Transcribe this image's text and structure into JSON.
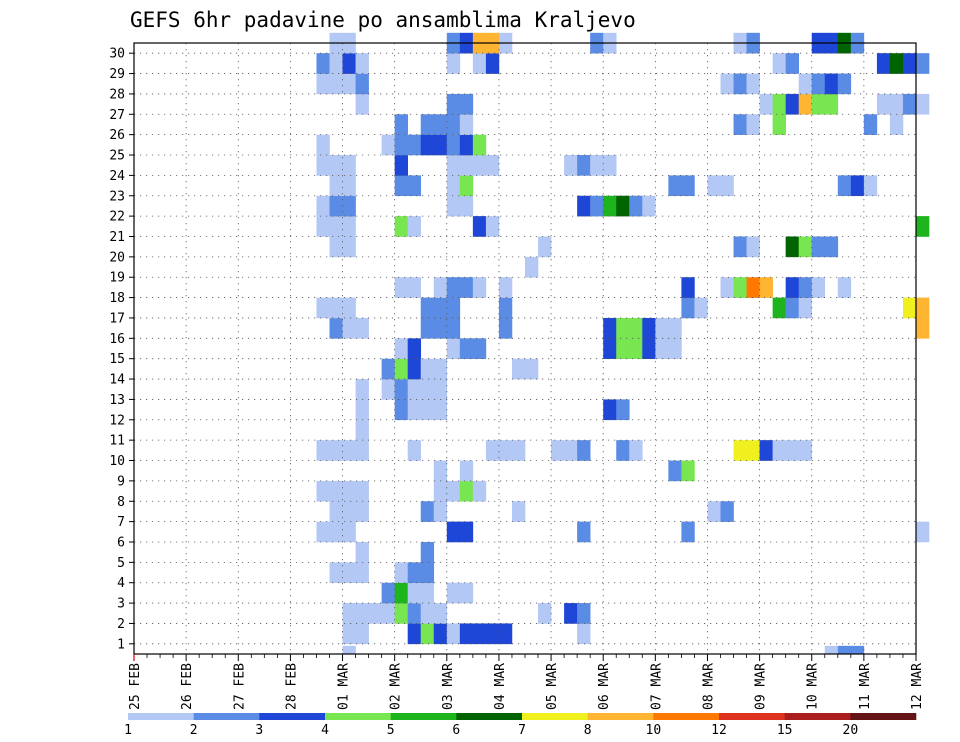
{
  "chart_data": {
    "type": "heatmap",
    "title": "GEFS 6hr padavine po ansamblima Kraljevo",
    "xlabel": "",
    "ylabel": "",
    "grid": true,
    "x_ticks": [
      "25 FEB",
      "26 FEB",
      "27 FEB",
      "28 FEB",
      "01 MAR",
      "02 MAR",
      "03 MAR",
      "04 MAR",
      "05 MAR",
      "06 MAR",
      "07 MAR",
      "08 MAR",
      "09 MAR",
      "10 MAR",
      "11 MAR",
      "12 MAR"
    ],
    "y_ticks": [
      1,
      2,
      3,
      4,
      5,
      6,
      7,
      8,
      9,
      10,
      11,
      12,
      13,
      14,
      15,
      16,
      17,
      18,
      19,
      20,
      21,
      22,
      23,
      24,
      25,
      26,
      27,
      28,
      29,
      30
    ],
    "x_range": [
      "25 FEB 00Z",
      "12 MAR 00Z"
    ],
    "y_range": [
      0,
      30
    ],
    "steps_per_day": 4,
    "levels": [
      1,
      2,
      3,
      4,
      5,
      6,
      7,
      8,
      10,
      12,
      15,
      20
    ],
    "colors": [
      "#b4c8f5",
      "#5a8ce6",
      "#1e46d7",
      "#78e650",
      "#1eb41e",
      "#006400",
      "#f0f01e",
      "#ffb432",
      "#ff7800",
      "#dc321e",
      "#aa1e1e",
      "#641414"
    ],
    "cells": [
      [
        16,
        1,
        1
      ],
      [
        16,
        2,
        1
      ],
      [
        17,
        1,
        1
      ],
      [
        21,
        1,
        3
      ],
      [
        22,
        1,
        4
      ],
      [
        23,
        1,
        3
      ],
      [
        24,
        1,
        1
      ],
      [
        25,
        1,
        3
      ],
      [
        26,
        1,
        3
      ],
      [
        27,
        1,
        3
      ],
      [
        28,
        1,
        3
      ],
      [
        34,
        1,
        1
      ],
      [
        16,
        2,
        1
      ],
      [
        17,
        2,
        1
      ],
      [
        18,
        2,
        1
      ],
      [
        19,
        2,
        1
      ],
      [
        20,
        2,
        4
      ],
      [
        21,
        2,
        2
      ],
      [
        22,
        2,
        1
      ],
      [
        23,
        2,
        1
      ],
      [
        31,
        2,
        1
      ],
      [
        33,
        2,
        3
      ],
      [
        34,
        2,
        2
      ],
      [
        19,
        3,
        2
      ],
      [
        20,
        3,
        5
      ],
      [
        21,
        3,
        1
      ],
      [
        22,
        3,
        1
      ],
      [
        24,
        3,
        1
      ],
      [
        25,
        3,
        1
      ],
      [
        15,
        4,
        1
      ],
      [
        16,
        4,
        1
      ],
      [
        17,
        4,
        1
      ],
      [
        20,
        4,
        1
      ],
      [
        21,
        4,
        2
      ],
      [
        22,
        4,
        2
      ],
      [
        17,
        5,
        1
      ],
      [
        22,
        5,
        2
      ],
      [
        14,
        6,
        1
      ],
      [
        15,
        6,
        1
      ],
      [
        16,
        6,
        1
      ],
      [
        24,
        6,
        3
      ],
      [
        25,
        6,
        3
      ],
      [
        34,
        6,
        2
      ],
      [
        42,
        6,
        2
      ],
      [
        60,
        6,
        1
      ],
      [
        15,
        7,
        1
      ],
      [
        16,
        7,
        1
      ],
      [
        17,
        7,
        1
      ],
      [
        22,
        7,
        2
      ],
      [
        23,
        7,
        1
      ],
      [
        29,
        7,
        1
      ],
      [
        44,
        7,
        1
      ],
      [
        45,
        7,
        2
      ],
      [
        14,
        8,
        1
      ],
      [
        15,
        8,
        1
      ],
      [
        16,
        8,
        1
      ],
      [
        17,
        8,
        1
      ],
      [
        23,
        8,
        1
      ],
      [
        24,
        8,
        1
      ],
      [
        25,
        8,
        4
      ],
      [
        26,
        8,
        1
      ],
      [
        23,
        9,
        1
      ],
      [
        25,
        9,
        1
      ],
      [
        41,
        9,
        2
      ],
      [
        42,
        9,
        4
      ],
      [
        14,
        10,
        1
      ],
      [
        15,
        10,
        1
      ],
      [
        16,
        10,
        1
      ],
      [
        17,
        10,
        1
      ],
      [
        21,
        10,
        1
      ],
      [
        27,
        10,
        1
      ],
      [
        28,
        10,
        1
      ],
      [
        29,
        10,
        1
      ],
      [
        32,
        10,
        1
      ],
      [
        33,
        10,
        1
      ],
      [
        34,
        10,
        2
      ],
      [
        37,
        10,
        2
      ],
      [
        38,
        10,
        1
      ],
      [
        46,
        10,
        7
      ],
      [
        47,
        10,
        7
      ],
      [
        48,
        10,
        3
      ],
      [
        49,
        10,
        1
      ],
      [
        50,
        10,
        1
      ],
      [
        51,
        10,
        1
      ],
      [
        17,
        11,
        1
      ],
      [
        17,
        12,
        1
      ],
      [
        20,
        12,
        2
      ],
      [
        21,
        12,
        1
      ],
      [
        22,
        12,
        1
      ],
      [
        23,
        12,
        1
      ],
      [
        36,
        12,
        3
      ],
      [
        37,
        12,
        2
      ],
      [
        17,
        13,
        1
      ],
      [
        19,
        13,
        1
      ],
      [
        20,
        13,
        2
      ],
      [
        21,
        13,
        1
      ],
      [
        22,
        13,
        1
      ],
      [
        23,
        13,
        1
      ],
      [
        19,
        14,
        2
      ],
      [
        20,
        14,
        4
      ],
      [
        21,
        14,
        3
      ],
      [
        22,
        14,
        1
      ],
      [
        23,
        14,
        1
      ],
      [
        29,
        14,
        1
      ],
      [
        30,
        14,
        1
      ],
      [
        20,
        15,
        1
      ],
      [
        21,
        15,
        3
      ],
      [
        24,
        15,
        1
      ],
      [
        25,
        15,
        2
      ],
      [
        26,
        15,
        2
      ],
      [
        36,
        15,
        3
      ],
      [
        37,
        15,
        4
      ],
      [
        38,
        15,
        4
      ],
      [
        39,
        15,
        3
      ],
      [
        40,
        15,
        1
      ],
      [
        41,
        15,
        1
      ],
      [
        15,
        16,
        2
      ],
      [
        16,
        16,
        1
      ],
      [
        17,
        16,
        1
      ],
      [
        22,
        16,
        2
      ],
      [
        23,
        16,
        2
      ],
      [
        24,
        16,
        2
      ],
      [
        28,
        16,
        2
      ],
      [
        36,
        16,
        3
      ],
      [
        37,
        16,
        4
      ],
      [
        38,
        16,
        4
      ],
      [
        39,
        16,
        3
      ],
      [
        40,
        16,
        1
      ],
      [
        41,
        16,
        1
      ],
      [
        60,
        16,
        8
      ],
      [
        14,
        17,
        1
      ],
      [
        15,
        17,
        1
      ],
      [
        16,
        17,
        1
      ],
      [
        22,
        17,
        2
      ],
      [
        23,
        17,
        2
      ],
      [
        24,
        17,
        2
      ],
      [
        28,
        17,
        2
      ],
      [
        42,
        17,
        2
      ],
      [
        43,
        17,
        1
      ],
      [
        49,
        17,
        5
      ],
      [
        50,
        17,
        2
      ],
      [
        51,
        17,
        1
      ],
      [
        59,
        17,
        7
      ],
      [
        60,
        17,
        8
      ],
      [
        20,
        18,
        1
      ],
      [
        21,
        18,
        1
      ],
      [
        23,
        18,
        1
      ],
      [
        24,
        18,
        2
      ],
      [
        25,
        18,
        2
      ],
      [
        26,
        18,
        1
      ],
      [
        28,
        18,
        1
      ],
      [
        42,
        18,
        3
      ],
      [
        45,
        18,
        1
      ],
      [
        46,
        18,
        4
      ],
      [
        47,
        18,
        9
      ],
      [
        48,
        18,
        8
      ],
      [
        50,
        18,
        3
      ],
      [
        51,
        18,
        2
      ],
      [
        52,
        18,
        1
      ],
      [
        54,
        18,
        1
      ],
      [
        30,
        19,
        1
      ],
      [
        15,
        20,
        1
      ],
      [
        16,
        20,
        1
      ],
      [
        31,
        20,
        1
      ],
      [
        46,
        20,
        2
      ],
      [
        47,
        20,
        1
      ],
      [
        50,
        20,
        6
      ],
      [
        51,
        20,
        4
      ],
      [
        52,
        20,
        2
      ],
      [
        53,
        20,
        2
      ],
      [
        14,
        21,
        1
      ],
      [
        15,
        21,
        1
      ],
      [
        16,
        21,
        1
      ],
      [
        20,
        21,
        4
      ],
      [
        21,
        21,
        1
      ],
      [
        26,
        21,
        3
      ],
      [
        27,
        21,
        1
      ],
      [
        60,
        21,
        5
      ],
      [
        14,
        22,
        1
      ],
      [
        15,
        22,
        2
      ],
      [
        16,
        22,
        2
      ],
      [
        24,
        22,
        1
      ],
      [
        25,
        22,
        1
      ],
      [
        34,
        22,
        3
      ],
      [
        35,
        22,
        2
      ],
      [
        36,
        22,
        5
      ],
      [
        37,
        22,
        6
      ],
      [
        38,
        22,
        2
      ],
      [
        39,
        22,
        1
      ],
      [
        15,
        23,
        1
      ],
      [
        16,
        23,
        1
      ],
      [
        20,
        23,
        2
      ],
      [
        21,
        23,
        2
      ],
      [
        24,
        23,
        1
      ],
      [
        25,
        23,
        4
      ],
      [
        41,
        23,
        2
      ],
      [
        42,
        23,
        2
      ],
      [
        44,
        23,
        1
      ],
      [
        45,
        23,
        1
      ],
      [
        54,
        23,
        2
      ],
      [
        55,
        23,
        3
      ],
      [
        56,
        23,
        1
      ],
      [
        14,
        24,
        1
      ],
      [
        15,
        24,
        1
      ],
      [
        16,
        24,
        1
      ],
      [
        20,
        24,
        3
      ],
      [
        24,
        24,
        1
      ],
      [
        25,
        24,
        1
      ],
      [
        26,
        24,
        1
      ],
      [
        27,
        24,
        1
      ],
      [
        33,
        24,
        1
      ],
      [
        34,
        24,
        2
      ],
      [
        35,
        24,
        1
      ],
      [
        36,
        24,
        1
      ],
      [
        14,
        25,
        1
      ],
      [
        19,
        25,
        1
      ],
      [
        20,
        25,
        2
      ],
      [
        21,
        25,
        2
      ],
      [
        22,
        25,
        3
      ],
      [
        23,
        25,
        3
      ],
      [
        24,
        25,
        2
      ],
      [
        25,
        25,
        3
      ],
      [
        26,
        25,
        4
      ],
      [
        20,
        26,
        2
      ],
      [
        22,
        26,
        2
      ],
      [
        23,
        26,
        2
      ],
      [
        24,
        26,
        2
      ],
      [
        25,
        26,
        1
      ],
      [
        46,
        26,
        2
      ],
      [
        47,
        26,
        1
      ],
      [
        49,
        26,
        4
      ],
      [
        56,
        26,
        2
      ],
      [
        58,
        26,
        1
      ],
      [
        17,
        27,
        1
      ],
      [
        24,
        27,
        2
      ],
      [
        25,
        27,
        2
      ],
      [
        48,
        27,
        1
      ],
      [
        49,
        27,
        4
      ],
      [
        50,
        27,
        3
      ],
      [
        51,
        27,
        8
      ],
      [
        52,
        27,
        4
      ],
      [
        53,
        27,
        4
      ],
      [
        57,
        27,
        1
      ],
      [
        58,
        27,
        1
      ],
      [
        59,
        27,
        2
      ],
      [
        60,
        27,
        1
      ],
      [
        14,
        28,
        1
      ],
      [
        15,
        28,
        1
      ],
      [
        16,
        28,
        1
      ],
      [
        17,
        28,
        2
      ],
      [
        45,
        28,
        1
      ],
      [
        46,
        28,
        2
      ],
      [
        47,
        28,
        1
      ],
      [
        51,
        28,
        1
      ],
      [
        52,
        28,
        2
      ],
      [
        53,
        28,
        3
      ],
      [
        54,
        28,
        2
      ],
      [
        14,
        29,
        2
      ],
      [
        15,
        29,
        1
      ],
      [
        16,
        29,
        3
      ],
      [
        17,
        29,
        1
      ],
      [
        24,
        29,
        1
      ],
      [
        26,
        29,
        1
      ],
      [
        27,
        29,
        3
      ],
      [
        49,
        29,
        1
      ],
      [
        50,
        29,
        2
      ],
      [
        57,
        29,
        3
      ],
      [
        58,
        29,
        6
      ],
      [
        59,
        29,
        3
      ],
      [
        60,
        29,
        2
      ],
      [
        15,
        30,
        1
      ],
      [
        16,
        30,
        1
      ],
      [
        24,
        30,
        2
      ],
      [
        25,
        30,
        3
      ],
      [
        26,
        30,
        8
      ],
      [
        27,
        30,
        8
      ],
      [
        28,
        30,
        1
      ],
      [
        35,
        30,
        2
      ],
      [
        36,
        30,
        1
      ],
      [
        46,
        30,
        1
      ],
      [
        47,
        30,
        2
      ],
      [
        52,
        30,
        3
      ],
      [
        53,
        30,
        3
      ],
      [
        54,
        30,
        6
      ],
      [
        55,
        30,
        2
      ],
      [
        16,
        0,
        1
      ],
      [
        53,
        0,
        1
      ],
      [
        54,
        0,
        2
      ],
      [
        55,
        0,
        2
      ]
    ]
  }
}
